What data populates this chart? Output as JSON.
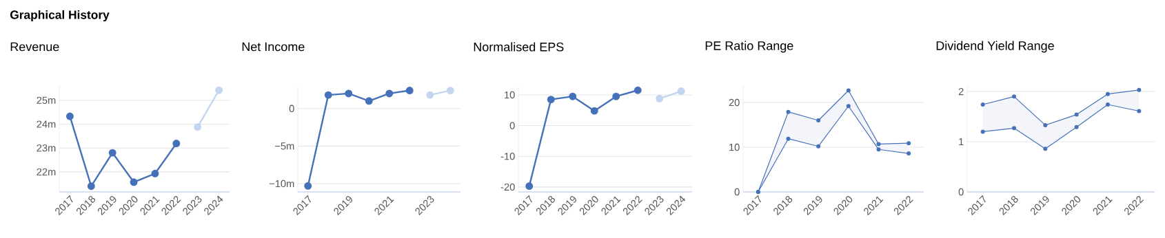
{
  "chart_data": [
    {
      "type": "other",
      "title": "Graphical History"
    },
    {
      "type": "line",
      "title": "Revenue",
      "categories": [
        "2017",
        "2018",
        "2019",
        "2020",
        "2021",
        "2022",
        "2023",
        "2024"
      ],
      "series": [
        {
          "color": "#4571b9",
          "values": [
            24.33,
            21.4,
            22.8,
            21.57,
            21.93,
            23.19,
            null,
            null
          ]
        },
        {
          "color": "#c3d5f1",
          "values": [
            null,
            null,
            null,
            null,
            null,
            null,
            23.88,
            25.42
          ]
        }
      ],
      "ylim": [
        21.16,
        25.6
      ],
      "yticks": [
        {
          "value": 22,
          "label": "22m"
        },
        {
          "value": 23,
          "label": "23m"
        },
        {
          "value": 24,
          "label": "24m"
        },
        {
          "value": 25,
          "label": "25m"
        }
      ],
      "grid": "y",
      "marker": "circle",
      "line_style": "solid"
    },
    {
      "type": "line",
      "title": "Net Income",
      "categories": [
        "2017",
        null,
        "2019",
        null,
        "2021",
        null,
        "2023",
        null
      ],
      "series": [
        {
          "color": "#4571b9",
          "values": [
            -10.3,
            1.8,
            2.0,
            1.0,
            2.0,
            2.4,
            null,
            null
          ]
        },
        {
          "color": "#c3d5f1",
          "values": [
            null,
            null,
            null,
            null,
            null,
            null,
            1.8,
            2.4
          ]
        }
      ],
      "ylim": [
        -11.1,
        3
      ],
      "yticks": [
        {
          "value": -10,
          "label": "−10m"
        },
        {
          "value": -5,
          "label": "−5m"
        },
        0
      ],
      "grid": "y",
      "marker": "circle",
      "line_style": "solid"
    },
    {
      "type": "line",
      "title": "Normalised EPS",
      "categories": [
        "2017",
        "2018",
        "2019",
        "2020",
        "2021",
        "2022",
        "2023",
        "2024"
      ],
      "series": [
        {
          "color": "#4571b9",
          "values": [
            -19.7,
            8.5,
            9.5,
            4.8,
            9.5,
            11.5,
            null,
            null
          ]
        },
        {
          "color": "#c3d5f1",
          "values": [
            null,
            null,
            null,
            null,
            null,
            null,
            8.8,
            11.2
          ]
        }
      ],
      "ylim": [
        -21.6,
        12.9
      ],
      "yticks": [
        -20,
        -10,
        0,
        10
      ],
      "grid": "y",
      "marker": "circle",
      "line_style": "solid"
    },
    {
      "type": "line",
      "title": "PE Ratio Range",
      "categories": [
        "2017",
        "2018",
        "2019",
        "2020",
        "2021",
        "2022"
      ],
      "series": [
        {
          "color": "#4571b9",
          "values": [
            0,
            17.9,
            16.0,
            22.7,
            10.7,
            10.9
          ],
          "lower": [
            0,
            11.9,
            10.2,
            19.2,
            9.5,
            8.6
          ],
          "upper": [
            0,
            17.9,
            16.0,
            22.7,
            10.7,
            10.9
          ]
        },
        {
          "color": "#4571b9",
          "values": [
            0,
            11.9,
            10.2,
            19.2,
            9.5,
            8.6
          ]
        }
      ],
      "ylim": [
        0,
        23.7
      ],
      "yticks": [
        0,
        10,
        20
      ],
      "grid": "y",
      "marker": "circle",
      "line_style": "solid"
    },
    {
      "type": "line",
      "title": "Dividend Yield Range",
      "categories": [
        "2017",
        "2018",
        "2019",
        "2020",
        "2021",
        "2022"
      ],
      "series": [
        {
          "color": "#4571b9",
          "values": [
            1.74,
            1.9,
            1.33,
            1.54,
            1.95,
            2.03
          ],
          "lower": [
            1.2,
            1.27,
            0.86,
            1.29,
            1.74,
            1.61
          ],
          "upper": [
            1.74,
            1.9,
            1.33,
            1.54,
            1.95,
            2.03
          ]
        },
        {
          "color": "#4571b9",
          "values": [
            1.2,
            1.27,
            0.86,
            1.29,
            1.74,
            1.61
          ]
        }
      ],
      "ylim": [
        0,
        2.11
      ],
      "yticks": [
        0,
        1,
        2
      ],
      "grid": "y",
      "marker": "circle",
      "line_style": "solid"
    }
  ]
}
